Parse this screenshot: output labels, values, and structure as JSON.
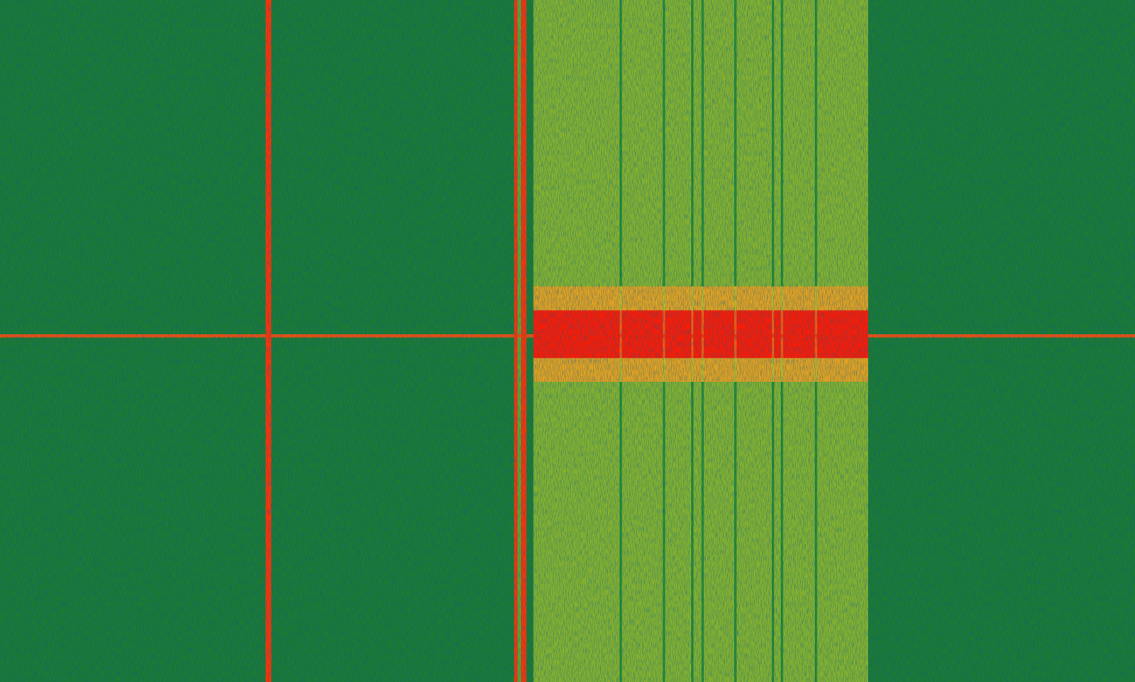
{
  "chart_data": {
    "type": "heatmap",
    "x_edges": [
      0,
      23.4,
      23.9,
      45.3,
      45.6,
      45.9,
      46.4,
      47.0,
      54.6,
      54.8,
      58.4,
      58.6,
      60.9,
      61.1,
      61.8,
      62.0,
      64.7,
      64.9,
      68.0,
      68.2,
      68.8,
      69.0,
      71.8,
      72.0,
      76.5,
      100
    ],
    "y_edges": [
      0,
      42,
      45.5,
      49,
      49.5,
      52.5,
      56,
      100
    ],
    "cells": [
      [
        30,
        95,
        30,
        95,
        55,
        95,
        30,
        60,
        40,
        60,
        40,
        60,
        40,
        60,
        40,
        60,
        40,
        60,
        40,
        60,
        40,
        60,
        40,
        60,
        30
      ],
      [
        30,
        95,
        30,
        95,
        55,
        95,
        30,
        80,
        68,
        80,
        68,
        80,
        68,
        80,
        68,
        80,
        68,
        80,
        68,
        80,
        68,
        80,
        68,
        80,
        30
      ],
      [
        30,
        95,
        30,
        95,
        55,
        95,
        30,
        98,
        90,
        98,
        90,
        98,
        90,
        98,
        90,
        98,
        90,
        98,
        90,
        98,
        90,
        98,
        90,
        98,
        30
      ],
      [
        92,
        95,
        92,
        95,
        92,
        95,
        92,
        98,
        95,
        98,
        95,
        98,
        95,
        98,
        95,
        98,
        95,
        98,
        95,
        98,
        95,
        98,
        95,
        98,
        92
      ],
      [
        30,
        95,
        30,
        95,
        55,
        95,
        30,
        98,
        90,
        98,
        90,
        98,
        90,
        98,
        90,
        98,
        90,
        98,
        90,
        98,
        90,
        98,
        90,
        98,
        30
      ],
      [
        30,
        95,
        30,
        95,
        55,
        95,
        30,
        80,
        68,
        80,
        68,
        80,
        68,
        80,
        68,
        80,
        68,
        80,
        68,
        80,
        68,
        80,
        68,
        80,
        30
      ],
      [
        30,
        95,
        30,
        95,
        55,
        95,
        30,
        60,
        40,
        60,
        40,
        60,
        40,
        60,
        40,
        60,
        40,
        60,
        40,
        60,
        40,
        60,
        40,
        60,
        30
      ]
    ],
    "xlim": [
      0,
      100
    ],
    "ylim": [
      0,
      100
    ],
    "color_range": [
      0,
      100
    ],
    "tick_labels": false
  }
}
